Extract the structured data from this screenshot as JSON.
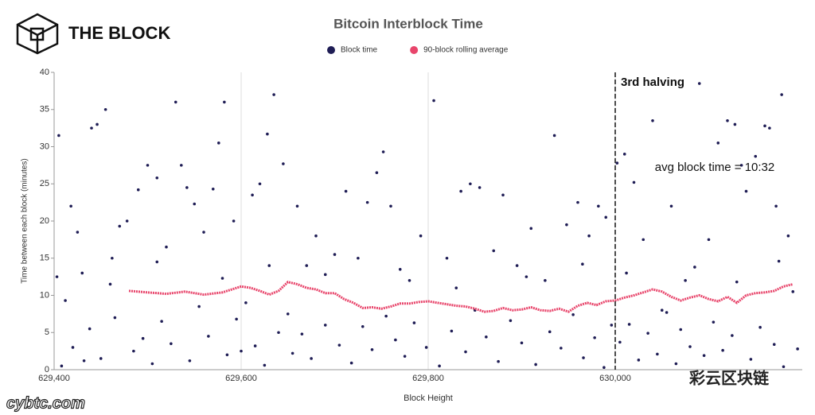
{
  "header": {
    "logo": "THE BLOCK"
  },
  "watermarks": [
    "cybtc.com",
    "彩云区块链"
  ],
  "chart_data": {
    "type": "scatter",
    "title": "Bitcoin Interblock Time",
    "xlabel": "Block Height",
    "ylabel": "Time between each block (minutes)",
    "xlim": [
      629400,
      630200
    ],
    "ylim": [
      0,
      40
    ],
    "xticks": [
      {
        "value": 629400,
        "label": "629,400"
      },
      {
        "value": 629600,
        "label": "629,600"
      },
      {
        "value": 629800,
        "label": "629,800"
      },
      {
        "value": 630000,
        "label": "630,000"
      }
    ],
    "yticks": [
      0,
      5,
      10,
      15,
      20,
      25,
      30,
      35,
      40
    ],
    "grid": "x",
    "annotations": [
      {
        "x": 630000,
        "text": "3rd halving"
      }
    ],
    "note": "avg block time = 10:32",
    "series": [
      {
        "name": "Block time",
        "color": "#1f1d55",
        "mode": "markers",
        "x": [
          629403,
          629405,
          629412,
          629418,
          629425,
          629432,
          629440,
          629446,
          629455,
          629462,
          629470,
          629478,
          629490,
          629500,
          629510,
          629520,
          629530,
          629536,
          629542,
          629550,
          629560,
          629570,
          629576,
          629582,
          629592,
          629600,
          629612,
          629620,
          629628,
          629635,
          629645,
          629660,
          629670,
          629680,
          629700,
          629712,
          629725,
          629735,
          629745,
          629752,
          629760,
          629780,
          629792,
          629806,
          629820,
          629835,
          629845,
          629855,
          629870,
          629880,
          629895,
          629910,
          629925,
          629935,
          629948,
          629960,
          629972,
          629982,
          629990,
          629996,
          630002,
          630010,
          630020,
          630030,
          630040,
          630050,
          630060,
          630075,
          630090,
          630100,
          630110,
          630120,
          630128,
          630135,
          630140,
          630150,
          630160,
          630165,
          630172,
          630178,
          630185,
          630190,
          629408,
          629420,
          629438,
          629450,
          629465,
          629485,
          629495,
          629505,
          629515,
          629525,
          629545,
          629555,
          629565,
          629585,
          629595,
          629605,
          629615,
          629625,
          629640,
          629650,
          629655,
          629665,
          629675,
          629690,
          629705,
          629718,
          629730,
          629740,
          629755,
          629765,
          629775,
          629785,
          629798,
          629812,
          629825,
          629840,
          629850,
          629862,
          629875,
          629888,
          629900,
          629915,
          629930,
          629942,
          629955,
          629966,
          629978,
          629988,
          630005,
          630015,
          630025,
          630035,
          630045,
          630055,
          630065,
          630070,
          630080,
          630095,
          630105,
          630115,
          630125,
          630145,
          630155,
          630170,
          630180,
          630195,
          629430,
          629460,
          629510,
          629580,
          629630,
          629690,
          629770,
          629830,
          629905,
          629965,
          630012,
          630085,
          630130,
          630175
        ],
        "values": [
          12.5,
          31.5,
          9.3,
          22,
          18.5,
          1.2,
          32.5,
          33,
          35,
          15,
          19.3,
          20,
          24.2,
          27.5,
          25.8,
          16.5,
          36,
          27.5,
          24.5,
          22.3,
          18.5,
          24.3,
          30.5,
          36,
          20,
          2.5,
          23.5,
          25,
          31.7,
          37,
          27.7,
          22,
          14,
          18,
          15.5,
          24,
          15,
          22.5,
          26.5,
          29.3,
          22,
          12,
          18,
          36.2,
          15,
          24,
          25,
          24.5,
          16,
          23.5,
          14,
          19,
          12,
          31.5,
          19.5,
          22.5,
          18,
          22,
          20.5,
          6,
          27.8,
          29,
          25.2,
          17.5,
          33.5,
          8,
          22,
          12,
          38.5,
          17.5,
          30.5,
          33.5,
          33,
          27.5,
          24,
          28.7,
          32.8,
          32.5,
          22,
          37,
          18,
          10.5,
          0.5,
          3,
          5.5,
          1.5,
          7,
          2.5,
          4.2,
          0.8,
          6.5,
          3.5,
          1.2,
          8.5,
          4.5,
          2,
          6.8,
          9,
          3.2,
          0.6,
          5,
          7.5,
          2.2,
          4.8,
          1.5,
          6,
          3.3,
          0.9,
          5.8,
          2.7,
          7.2,
          4,
          1.8,
          6.3,
          3,
          0.5,
          5.2,
          2.4,
          8,
          4.4,
          1.1,
          6.6,
          3.6,
          0.7,
          5.1,
          2.9,
          7.4,
          1.6,
          4.3,
          0.3,
          3.7,
          6.1,
          1.3,
          4.9,
          2.1,
          7.7,
          0.8,
          5.4,
          3.1,
          1.9,
          6.4,
          2.6,
          4.6,
          1.4,
          5.7,
          3.4,
          0.4,
          2.8,
          13,
          11.5,
          14.5,
          12.3,
          14,
          12.8,
          13.5,
          11,
          12.5,
          14.2,
          13,
          13.8,
          11.8,
          14.6
        ]
      },
      {
        "name": "90-block rolling average",
        "color": "#e8456b",
        "mode": "line",
        "x": [
          629480,
          629500,
          629520,
          629540,
          629560,
          629580,
          629600,
          629610,
          629620,
          629630,
          629640,
          629650,
          629660,
          629670,
          629680,
          629690,
          629700,
          629710,
          629720,
          629730,
          629740,
          629750,
          629760,
          629770,
          629780,
          629790,
          629800,
          629810,
          629820,
          629830,
          629840,
          629850,
          629860,
          629870,
          629880,
          629890,
          629900,
          629910,
          629920,
          629930,
          629940,
          629950,
          629960,
          629970,
          629980,
          629990,
          630000,
          630010,
          630020,
          630030,
          630040,
          630050,
          630060,
          630070,
          630080,
          630090,
          630100,
          630110,
          630120,
          630130,
          630140,
          630150,
          630160,
          630170,
          630180,
          630190
        ],
        "values": [
          10.6,
          10.4,
          10.2,
          10.5,
          10.1,
          10.4,
          11.2,
          11.0,
          10.6,
          10.1,
          10.6,
          11.8,
          11.5,
          11.0,
          10.8,
          10.3,
          10.3,
          9.5,
          9.0,
          8.3,
          8.4,
          8.2,
          8.5,
          8.9,
          8.9,
          9.1,
          9.2,
          9.0,
          8.8,
          8.6,
          8.5,
          8.2,
          7.8,
          7.9,
          8.3,
          8.0,
          8.1,
          8.4,
          8.0,
          7.9,
          8.2,
          7.8,
          8.6,
          9.0,
          8.7,
          9.2,
          9.3,
          9.7,
          10.0,
          10.4,
          10.8,
          10.5,
          9.8,
          9.3,
          9.7,
          10.0,
          9.5,
          9.2,
          9.8,
          9.0,
          10.0,
          10.3,
          10.4,
          10.6,
          11.2,
          11.5
        ]
      }
    ]
  }
}
